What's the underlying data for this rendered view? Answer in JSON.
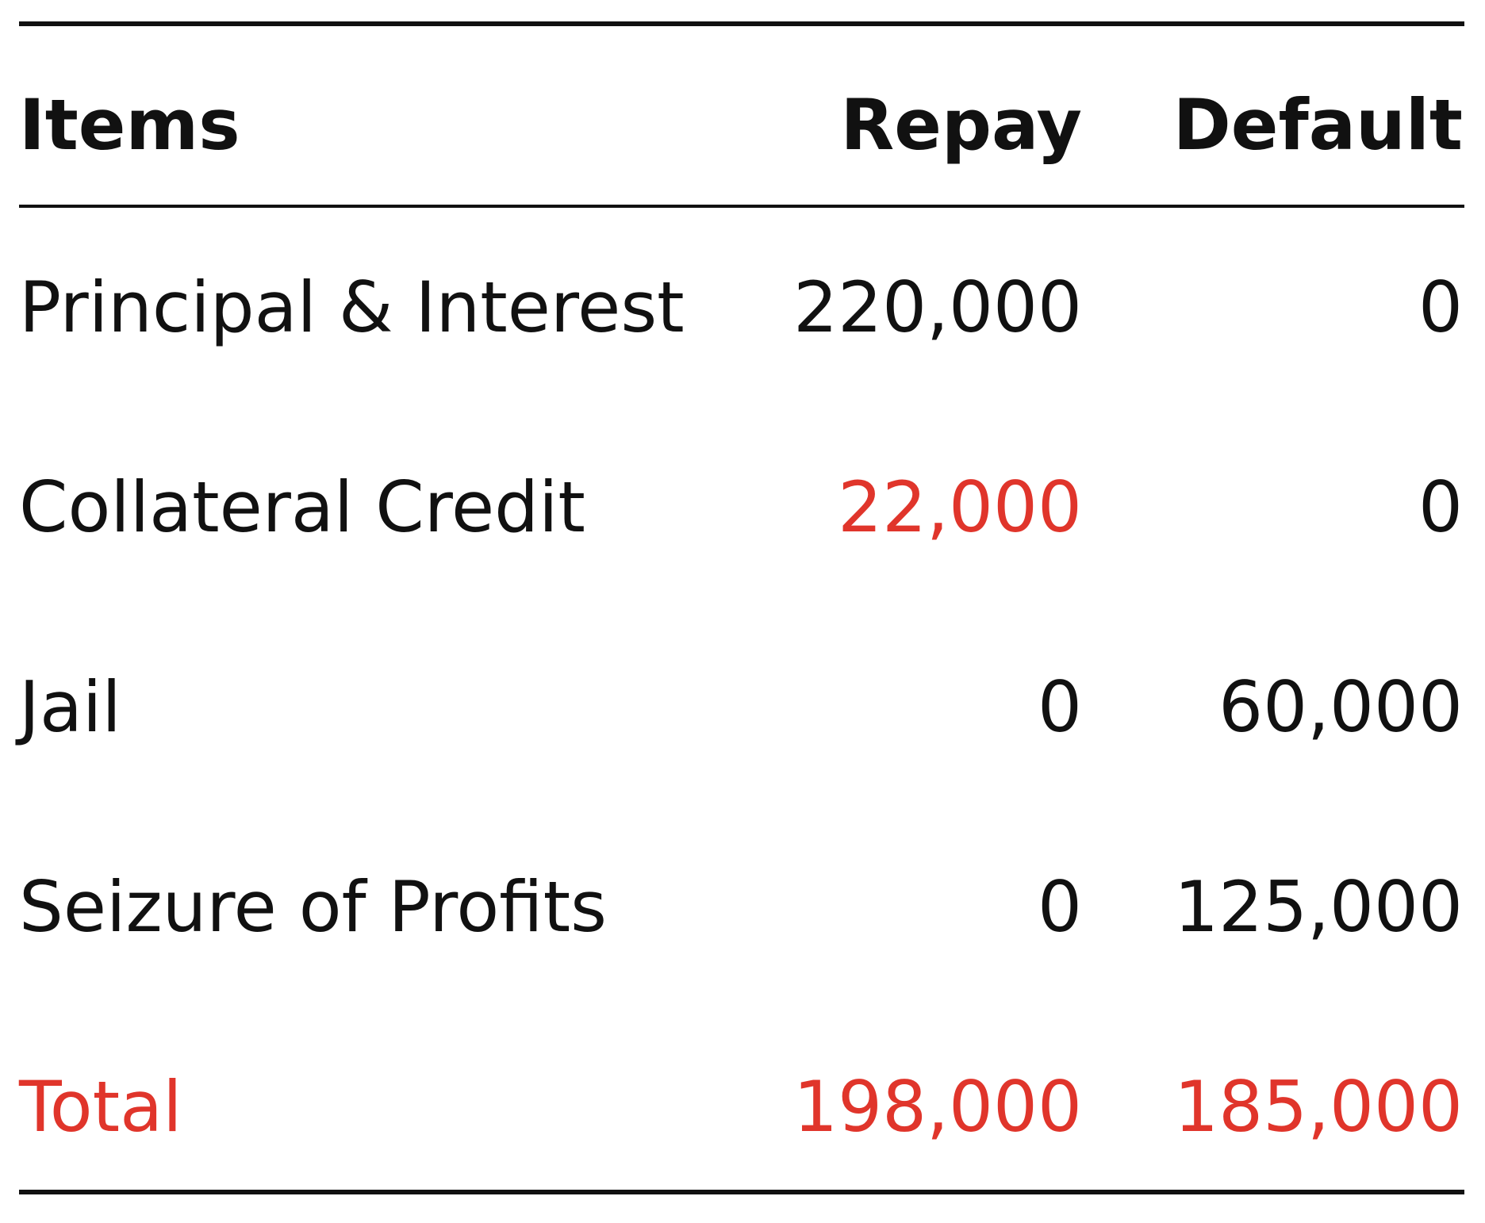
{
  "table": {
    "header": [
      "Items",
      "Repay",
      "Default"
    ],
    "rows": [
      [
        "Principal & Interest",
        "220,000",
        "0"
      ],
      [
        "Collateral Credit",
        "22,000",
        "0"
      ],
      [
        "Jail",
        "0",
        "60,000"
      ],
      [
        "Seizure of Profits",
        "0",
        "125,000"
      ],
      [
        "Total",
        "198,000",
        "185,000"
      ]
    ]
  }
}
